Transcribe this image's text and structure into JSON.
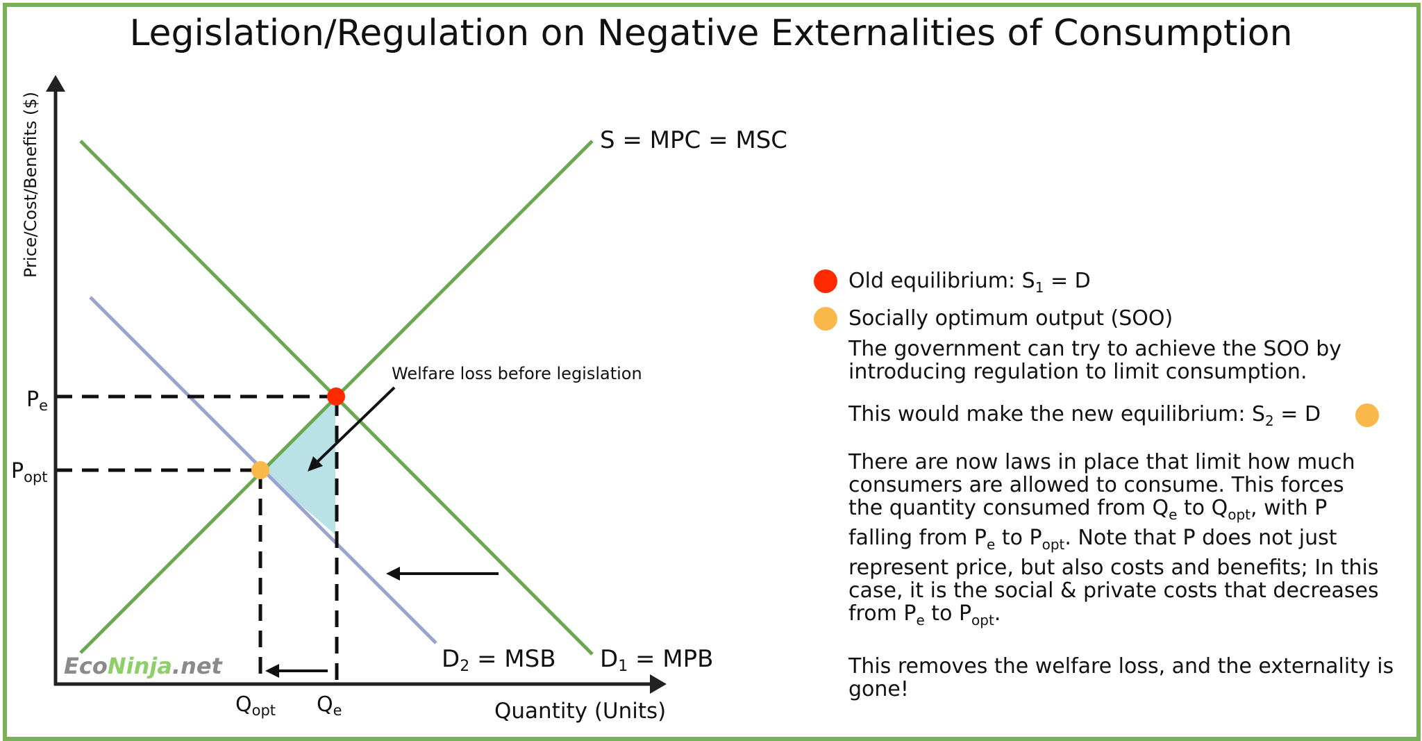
{
  "title": "Legislation/Regulation on Negative Externalities of Consumption",
  "colors": {
    "border": "#79b159",
    "supply_line": "#6aa84f",
    "demand1_line": "#6aa84f",
    "demand2_line": "#9aa3cf",
    "welfare_fill": "#b9e1e6",
    "old_equilibrium": "#ff2a00",
    "soo": "#fbb84a",
    "axis": "#222222"
  },
  "diagram": {
    "y_axis_label": "Price/Cost/Benefits ($)",
    "x_axis_label": "Quantity (Units)",
    "supply_label": "S = MPC = MSC",
    "demand1_label": "D",
    "demand1_sub": "1",
    "demand1_rest": " = MPB",
    "demand2_label": "D",
    "demand2_sub": "2",
    "demand2_rest": " = MSB",
    "price_e": "P",
    "price_e_sub": "e",
    "price_opt": "P",
    "price_opt_sub": "opt",
    "qty_opt": "Q",
    "qty_opt_sub": "opt",
    "qty_e": "Q",
    "qty_e_sub": "e",
    "welfare_label": "Welfare loss before legislation",
    "watermark_a": "Eco",
    "watermark_b": "Ninja",
    "watermark_c": ".net"
  },
  "legend": {
    "old_eq_text": "Old equilibrium: S",
    "old_eq_sub": "1",
    "old_eq_rest": " = D",
    "soo_text": "Socially optimum output (SOO)",
    "para1": "The government can try to achieve the SOO by introducing regulation to limit consumption.",
    "para2_a": "This would make the new equilibrium: S",
    "para2_sub": "2",
    "para2_b": " = D",
    "para3": {
      "line1": "There are now laws in place that limit how much",
      "line2": "consumers are allowed to consume. This forces",
      "line3_a": "the quantity consumed from Q",
      "line3_sub1": "e",
      "line3_b": " to Q",
      "line3_sub2": "opt",
      "line3_c": ", with P",
      "line4_a": "falling from P",
      "line4_sub1": "e",
      "line4_b": " to P",
      "line4_sub2": "opt",
      "line4_c": ". Note that P does not just",
      "line5": "represent price, but also costs and benefits; In this",
      "line6": "case, it is the social & private costs that decreases",
      "line7_a": "from P",
      "line7_sub1": "e",
      "line7_b": " to P",
      "line7_sub2": "opt",
      "line7_c": "."
    },
    "para4": "This removes the welfare loss, and the externality is gone!"
  }
}
